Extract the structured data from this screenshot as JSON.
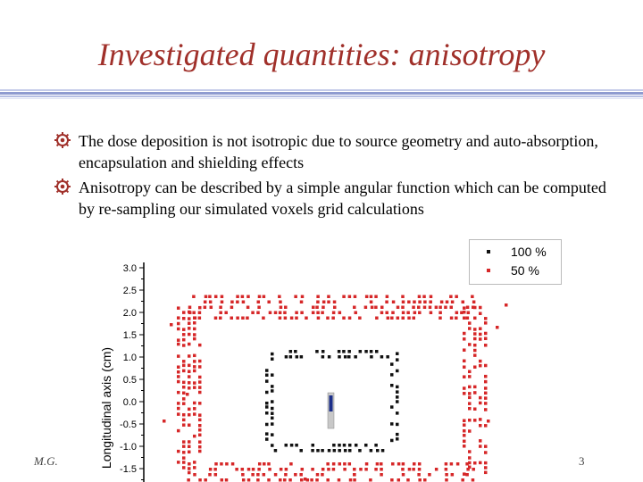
{
  "slide": {
    "title": "Investigated quantities: anisotropy",
    "bullets": [
      "The dose deposition is not isotropic due to source geometry and auto-absorption, encapsulation and shielding effects",
      "Anisotropy can be described by a simple angular function which can be computed by re-sampling our simulated voxels grid calculations"
    ],
    "footer_left": "M.G.",
    "footer_right": "3"
  },
  "colors": {
    "title": "#a0302a",
    "rule": "#8f9bd0",
    "red_series": "#d62728",
    "black_series": "#111111",
    "source": "#1c2f8a"
  },
  "icons": {
    "bullet": "gear-bullet-icon"
  },
  "chart_data": {
    "type": "scatter",
    "ylabel": "Longitudinal axis (cm)",
    "ylim": [
      -1.5,
      3.0
    ],
    "yticks": [
      "3.0",
      "2.5",
      "2.0",
      "1.5",
      "1.0",
      "0.5",
      "0.0",
      "-0.5",
      "-1.0",
      "-1.5"
    ],
    "series": [
      {
        "name": "100 %",
        "color": "#111111",
        "rect": {
          "x0": -1.4,
          "x1": 1.4,
          "y0": -1.0,
          "y1": 1.1
        }
      },
      {
        "name": "50 %",
        "color": "#d62728",
        "rect": {
          "x0": -3.2,
          "x1": 3.2,
          "y0": -1.6,
          "y1": 2.15
        }
      }
    ],
    "legend": "top-right"
  }
}
